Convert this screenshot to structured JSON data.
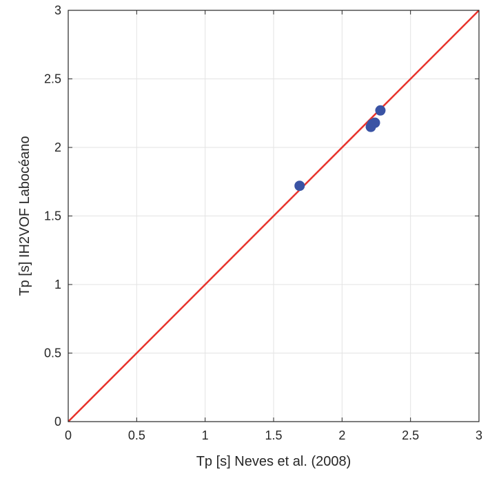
{
  "chart_data": {
    "type": "scatter",
    "title": "",
    "xlabel": "Tp [s] Neves et al. (2008)",
    "ylabel": "Tp [s] IH2VOF Labocéano",
    "xlim": [
      0,
      3
    ],
    "ylim": [
      0,
      3
    ],
    "xticks": [
      0,
      0.5,
      1,
      1.5,
      2,
      2.5,
      3
    ],
    "yticks": [
      0,
      0.5,
      1,
      1.5,
      2,
      2.5,
      3
    ],
    "xtick_labels": [
      "0",
      "0.5",
      "1",
      "1.5",
      "2",
      "2.5",
      "3"
    ],
    "ytick_labels": [
      "0",
      "0.5",
      "1",
      "1.5",
      "2",
      "2.5",
      "3"
    ],
    "grid": true,
    "series": [
      {
        "type": "scatter",
        "color": "#3a53a4",
        "points": [
          {
            "x": 1.69,
            "y": 1.72
          },
          {
            "x": 2.21,
            "y": 2.15
          },
          {
            "x": 2.22,
            "y": 2.17
          },
          {
            "x": 2.24,
            "y": 2.18
          },
          {
            "x": 2.28,
            "y": 2.27
          }
        ]
      },
      {
        "type": "line",
        "color": "#e8322b",
        "points": [
          {
            "x": 0,
            "y": 0
          },
          {
            "x": 3,
            "y": 3
          }
        ]
      }
    ]
  }
}
